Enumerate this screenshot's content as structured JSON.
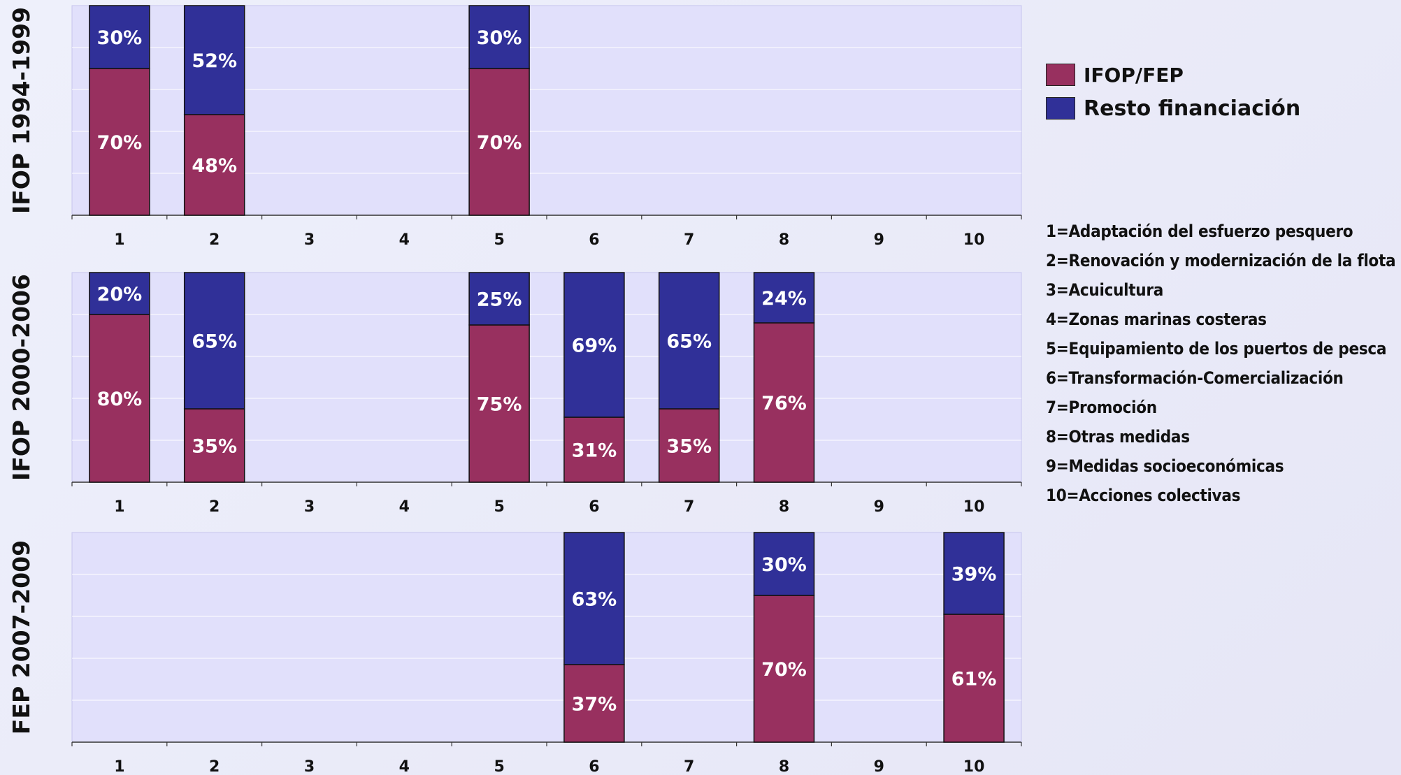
{
  "legend": {
    "series": [
      {
        "name": "IFOP/FEP",
        "color": "#98305f"
      },
      {
        "name": "Resto financiación",
        "color": "#303098"
      }
    ]
  },
  "key": [
    "1=Adaptación del esfuerzo pesquero",
    "2=Renovación y modernización de la flota",
    "3=Acuicultura",
    "4=Zonas marinas costeras",
    "5=Equipamiento de los puertos de pesca",
    "6=Transformación-Comercialización",
    "7=Promoción",
    "8=Otras medidas",
    "9=Medidas socioeconómicas",
    "10=Acciones colectivas"
  ],
  "chart_data": [
    {
      "type": "bar",
      "stacked": true,
      "title": "IFOP 1994-1999",
      "ylabel": "IFOP 1994-1999",
      "categories": [
        "1",
        "2",
        "3",
        "4",
        "5",
        "6",
        "7",
        "8",
        "9",
        "10"
      ],
      "ylim": [
        0,
        100
      ],
      "series": [
        {
          "name": "IFOP/FEP",
          "color": "#98305f",
          "values": [
            70,
            48,
            null,
            null,
            70,
            null,
            null,
            null,
            null,
            null
          ]
        },
        {
          "name": "Resto financiación",
          "color": "#303098",
          "values": [
            30,
            52,
            null,
            null,
            30,
            null,
            null,
            null,
            null,
            null
          ]
        }
      ]
    },
    {
      "type": "bar",
      "stacked": true,
      "title": "IFOP 2000-2006",
      "ylabel": "IFOP 2000-2006",
      "categories": [
        "1",
        "2",
        "3",
        "4",
        "5",
        "6",
        "7",
        "8",
        "9",
        "10"
      ],
      "ylim": [
        0,
        100
      ],
      "series": [
        {
          "name": "IFOP/FEP",
          "color": "#98305f",
          "values": [
            80,
            35,
            null,
            null,
            75,
            31,
            35,
            76,
            null,
            null
          ]
        },
        {
          "name": "Resto financiación",
          "color": "#303098",
          "values": [
            20,
            65,
            null,
            null,
            25,
            69,
            65,
            24,
            null,
            null
          ]
        }
      ]
    },
    {
      "type": "bar",
      "stacked": true,
      "title": "FEP 2007-2009",
      "ylabel": "FEP 2007-2009",
      "categories": [
        "1",
        "2",
        "3",
        "4",
        "5",
        "6",
        "7",
        "8",
        "9",
        "10"
      ],
      "ylim": [
        0,
        100
      ],
      "series": [
        {
          "name": "IFOP/FEP",
          "color": "#98305f",
          "values": [
            null,
            null,
            null,
            null,
            null,
            37,
            null,
            70,
            null,
            61
          ]
        },
        {
          "name": "Resto financiación",
          "color": "#303098",
          "values": [
            null,
            null,
            null,
            null,
            null,
            63,
            null,
            30,
            null,
            39
          ]
        }
      ]
    }
  ]
}
